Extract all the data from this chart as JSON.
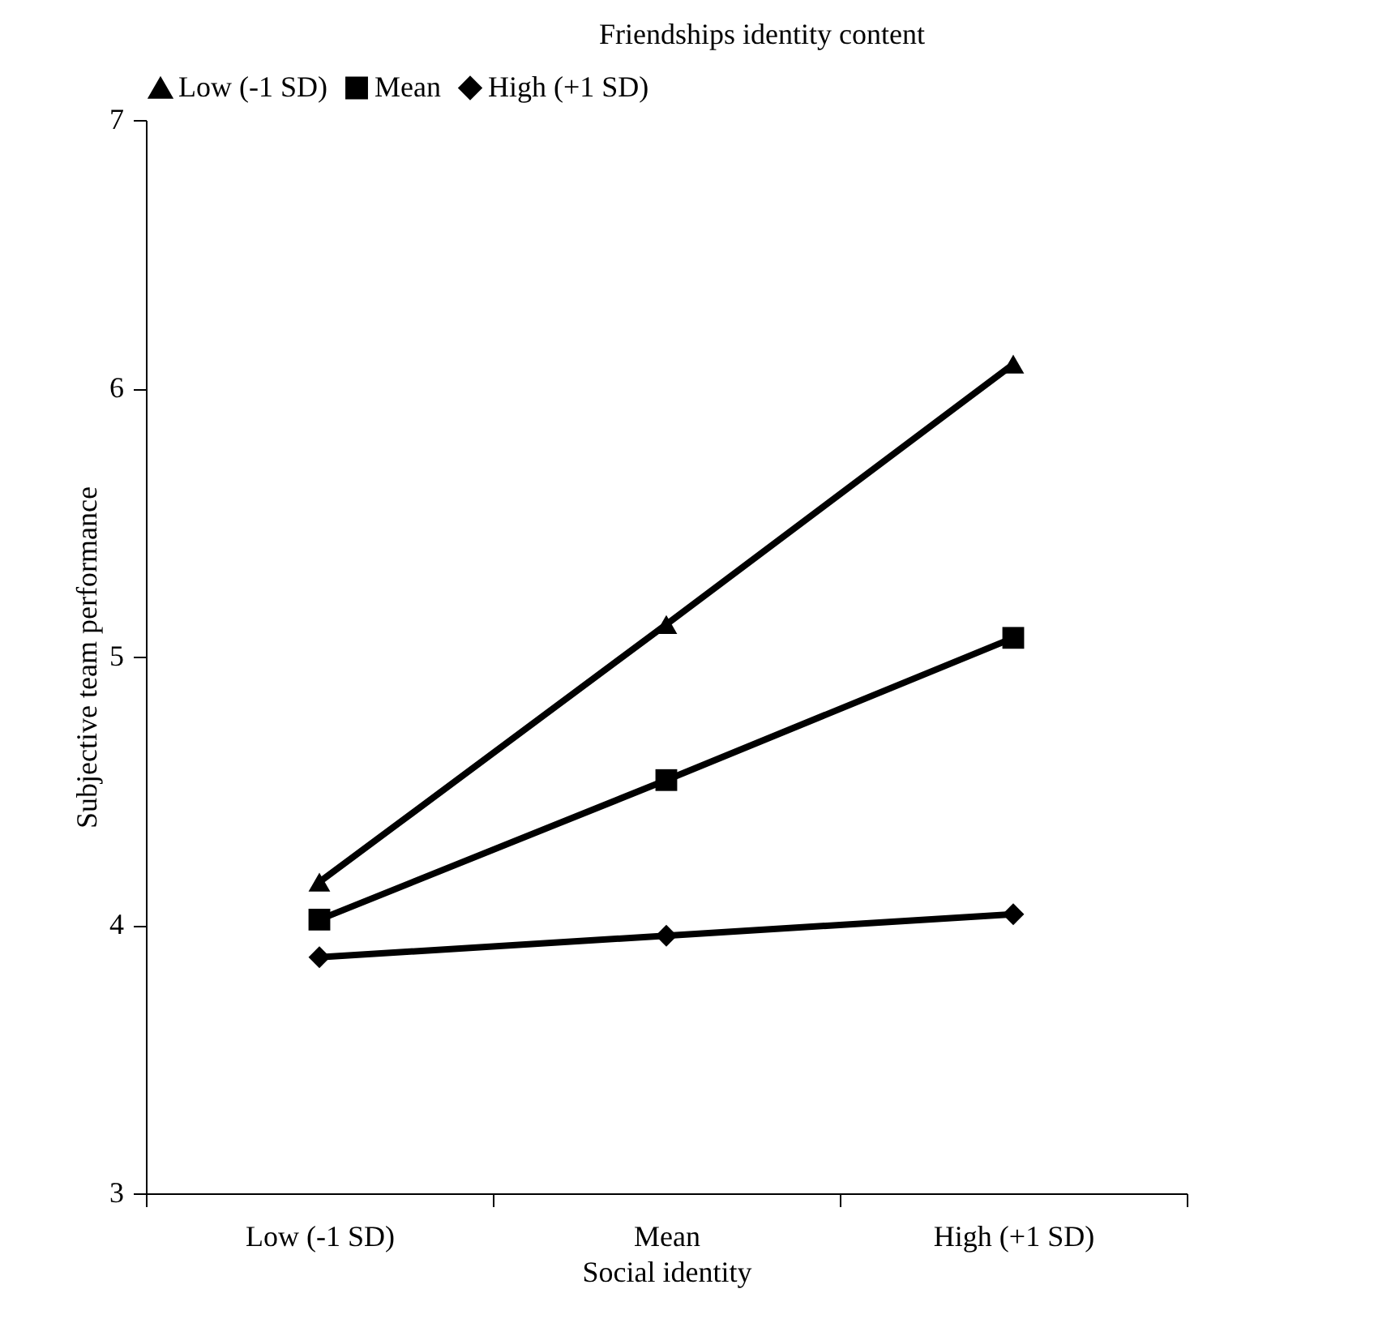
{
  "chart_data": {
    "type": "line",
    "title": "Friendships identity content",
    "xlabel": "Social identity",
    "ylabel": "Subjective team performance",
    "categories": [
      "Low (-1 SD)",
      "Mean",
      "High (+1 SD)"
    ],
    "series": [
      {
        "name": "Low (-1 SD)",
        "color": "#000000",
        "marker": "triangle",
        "values": [
          4.16,
          5.12,
          6.09
        ]
      },
      {
        "name": "Mean",
        "color": "#000000",
        "marker": "square",
        "values": [
          4.02,
          4.54,
          5.07
        ]
      },
      {
        "name": "High (+1 SD)",
        "color": "#000000",
        "marker": "diamond",
        "values": [
          3.88,
          3.96,
          4.04
        ]
      }
    ],
    "ylim": [
      3,
      7
    ],
    "yticks": [
      {
        "value": 3,
        "label": "3"
      },
      {
        "value": 4,
        "label": "4"
      },
      {
        "value": 5,
        "label": "5"
      },
      {
        "value": 6,
        "label": "6"
      },
      {
        "value": 7,
        "label": "7"
      }
    ],
    "grid": false,
    "legend": "top",
    "line_style": "solid"
  }
}
